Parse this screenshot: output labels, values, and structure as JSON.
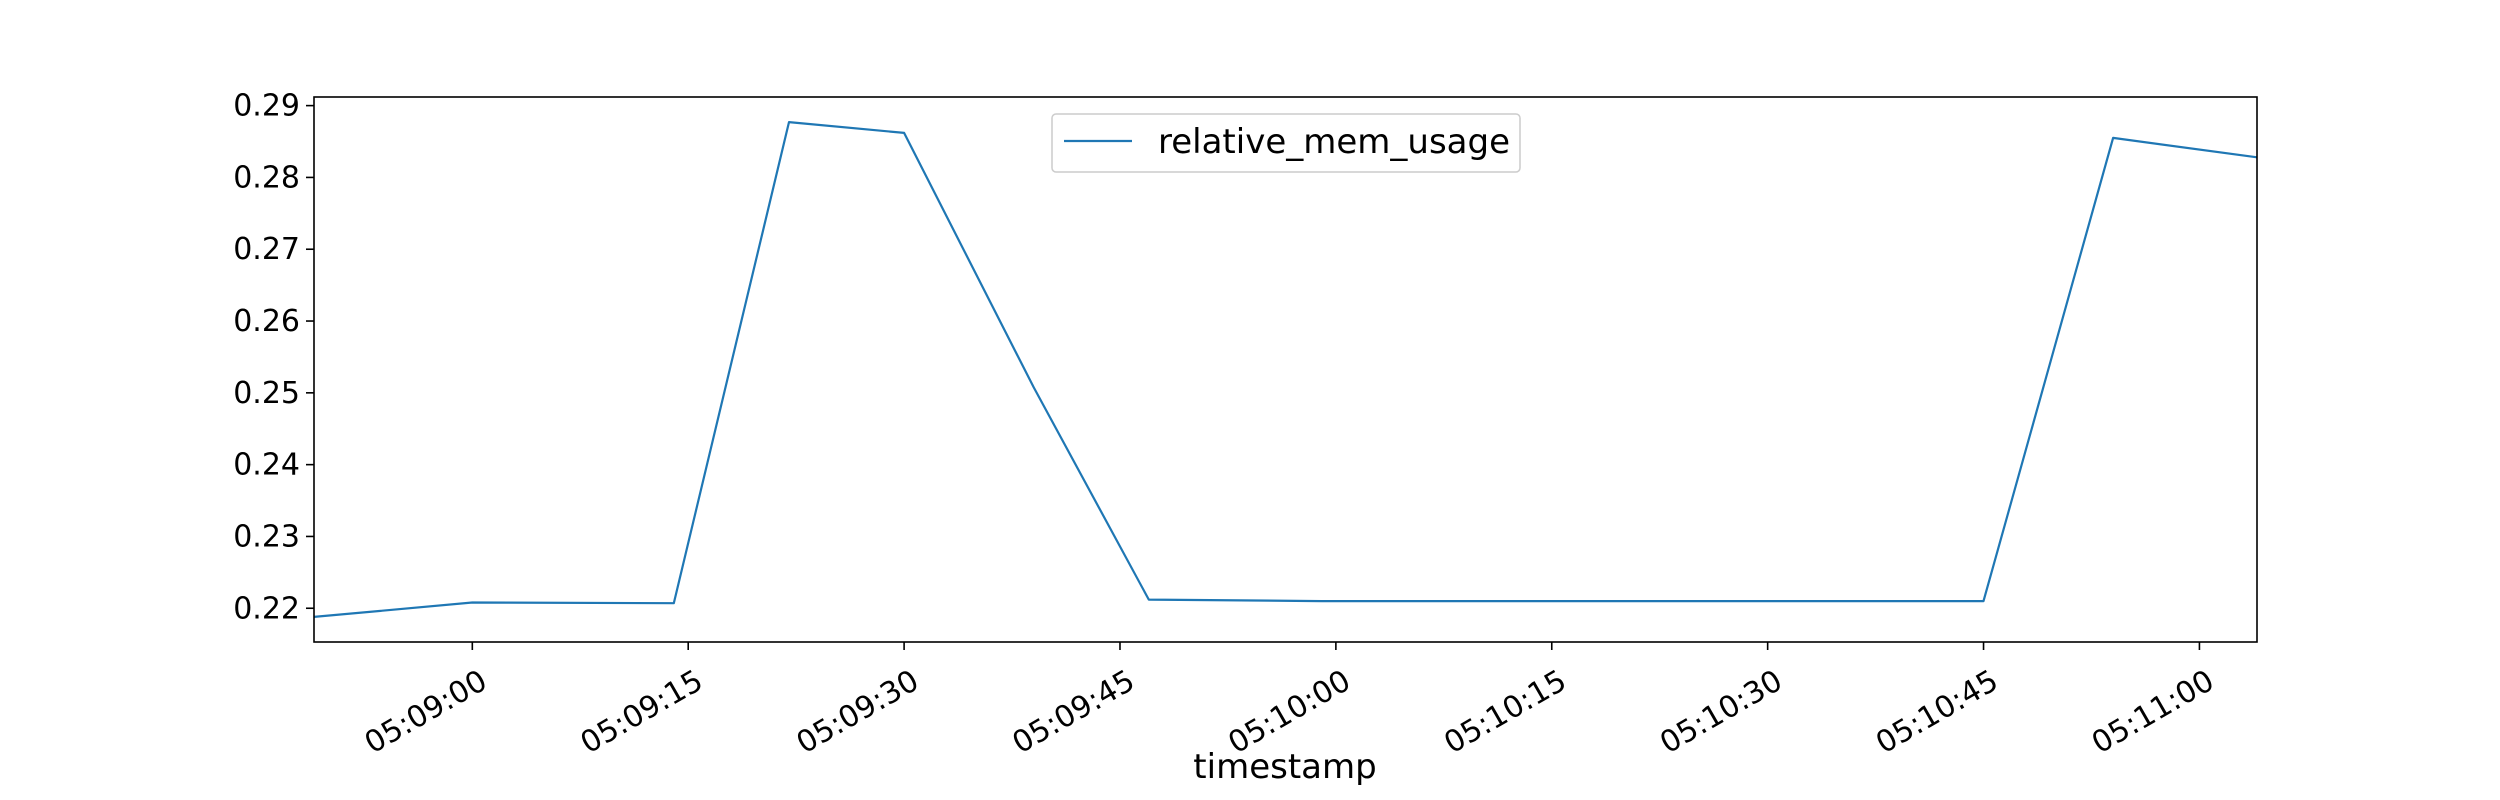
{
  "chart_data": {
    "type": "line",
    "title": "",
    "xlabel": "timestamp",
    "ylabel": "",
    "x_tick_labels": [
      "05:09:00",
      "05:09:15",
      "05:09:30",
      "05:09:45",
      "05:10:00",
      "05:10:15",
      "05:10:30",
      "05:10:45",
      "05:11:00"
    ],
    "x_tick_seconds": [
      0,
      15,
      30,
      45,
      60,
      75,
      90,
      105,
      120
    ],
    "xlim_seconds": [
      -11,
      124
    ],
    "y_ticks": [
      0.22,
      0.23,
      0.24,
      0.25,
      0.26,
      0.27,
      0.28,
      0.29
    ],
    "y_tick_labels": [
      "0.22",
      "0.23",
      "0.24",
      "0.25",
      "0.26",
      "0.27",
      "0.28",
      "0.29"
    ],
    "ylim": [
      0.2153,
      0.2912
    ],
    "grid": false,
    "legend_position": "top-center",
    "series": [
      {
        "name": "relative_mem_usage",
        "color": "#1f77b4",
        "x_seconds": [
          -11,
          0,
          14,
          22,
          30,
          39,
          47,
          59,
          75,
          90,
          105,
          114,
          124
        ],
        "values": [
          0.2188,
          0.2208,
          0.2207,
          0.2877,
          0.2862,
          0.2508,
          0.2212,
          0.221,
          0.221,
          0.221,
          0.221,
          0.2855,
          0.2828
        ]
      }
    ]
  }
}
